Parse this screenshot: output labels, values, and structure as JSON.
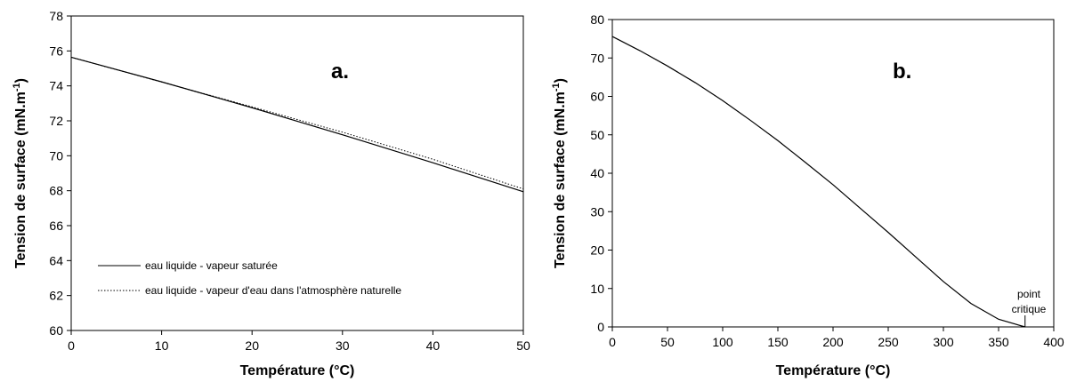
{
  "chart_data": [
    {
      "type": "line",
      "panel_label": "a.",
      "xlabel": "Température (°C)",
      "ylabel": "Tension de surface (mN.m",
      "ylabel_sup": "-1",
      "ylabel_suffix": ")",
      "xlim": [
        0,
        50
      ],
      "ylim": [
        60,
        78
      ],
      "xticks": [
        "0",
        "10",
        "20",
        "30",
        "40",
        "50"
      ],
      "yticks": [
        "60",
        "62",
        "64",
        "66",
        "68",
        "70",
        "72",
        "74",
        "76",
        "78"
      ],
      "grid": false,
      "legend_position": "bottom-left",
      "series": [
        {
          "name": "eau liquide - vapeur saturée",
          "style": "solid",
          "x": [
            0,
            10,
            20,
            30,
            40,
            50
          ],
          "y": [
            75.64,
            74.23,
            72.75,
            71.2,
            69.6,
            67.94
          ]
        },
        {
          "name": "eau liquide - vapeur d'eau dans l'atmosphère naturelle",
          "style": "dotted",
          "x": [
            0,
            10,
            20,
            30,
            40,
            50
          ],
          "y": [
            75.64,
            74.22,
            72.8,
            71.35,
            69.8,
            68.1
          ]
        }
      ]
    },
    {
      "type": "line",
      "panel_label": "b.",
      "xlabel": "Température (°C)",
      "ylabel": "Tension de surface (mN.m",
      "ylabel_sup": "-1",
      "ylabel_suffix": ")",
      "xlim": [
        0,
        400
      ],
      "ylim": [
        0,
        80
      ],
      "xticks": [
        "0",
        "50",
        "100",
        "150",
        "200",
        "250",
        "300",
        "350",
        "400"
      ],
      "yticks": [
        "0",
        "10",
        "20",
        "30",
        "40",
        "50",
        "60",
        "70",
        "80"
      ],
      "grid": false,
      "annotation": {
        "lines": [
          "point",
          "critique"
        ],
        "x": 374,
        "y": 0
      },
      "series": [
        {
          "style": "solid",
          "x": [
            0,
            25,
            50,
            75,
            100,
            125,
            150,
            175,
            200,
            225,
            250,
            275,
            300,
            325,
            350,
            374
          ],
          "y": [
            75.6,
            71.9,
            67.9,
            63.6,
            58.9,
            53.8,
            48.5,
            42.8,
            37.0,
            30.8,
            24.6,
            18.2,
            11.8,
            6.1,
            2.0,
            0
          ]
        }
      ]
    }
  ]
}
